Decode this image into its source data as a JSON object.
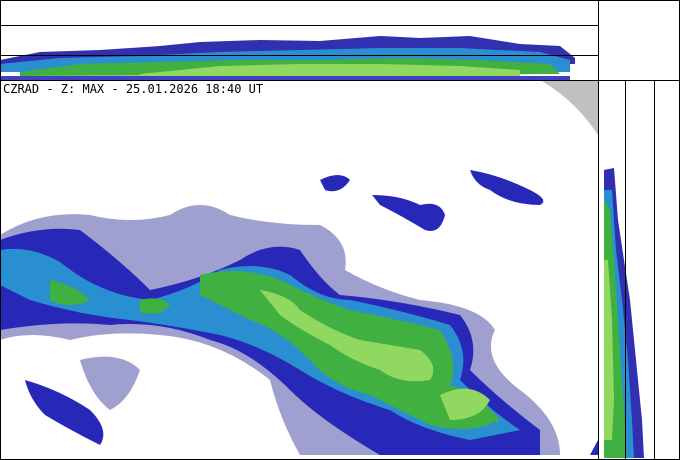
{
  "title": "CZRAD - Z: MAX - 25.01.2026 18:40 UT"
}
